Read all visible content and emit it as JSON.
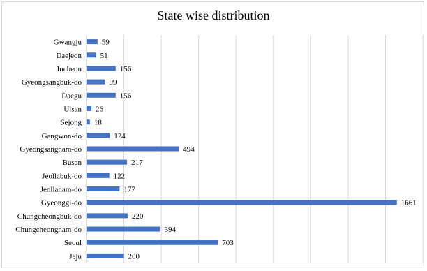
{
  "chart_data": {
    "type": "bar",
    "orientation": "horizontal",
    "title": "State wise distribution",
    "categories": [
      "Gwangju",
      "Daejeon",
      "Incheon",
      "Gyeongsangbuk-do",
      "Daegu",
      "Ulsan",
      "Sejong",
      "Gangwon-do",
      "Gyeongsangnam-do",
      "Busan",
      "Jeollabuk-do",
      "Jeollanam-do",
      "Gyeonggi-do",
      "Chungcheongbuk-do",
      "Chungcheongnam-do",
      "Seoul",
      "Jeju"
    ],
    "values": [
      59,
      51,
      156,
      99,
      156,
      26,
      18,
      124,
      494,
      217,
      122,
      177,
      1661,
      220,
      394,
      703,
      200
    ],
    "xlim": [
      0,
      1800
    ],
    "grid": true,
    "bar_color": "#4472c4",
    "grid_color": "#d9d9d9"
  }
}
